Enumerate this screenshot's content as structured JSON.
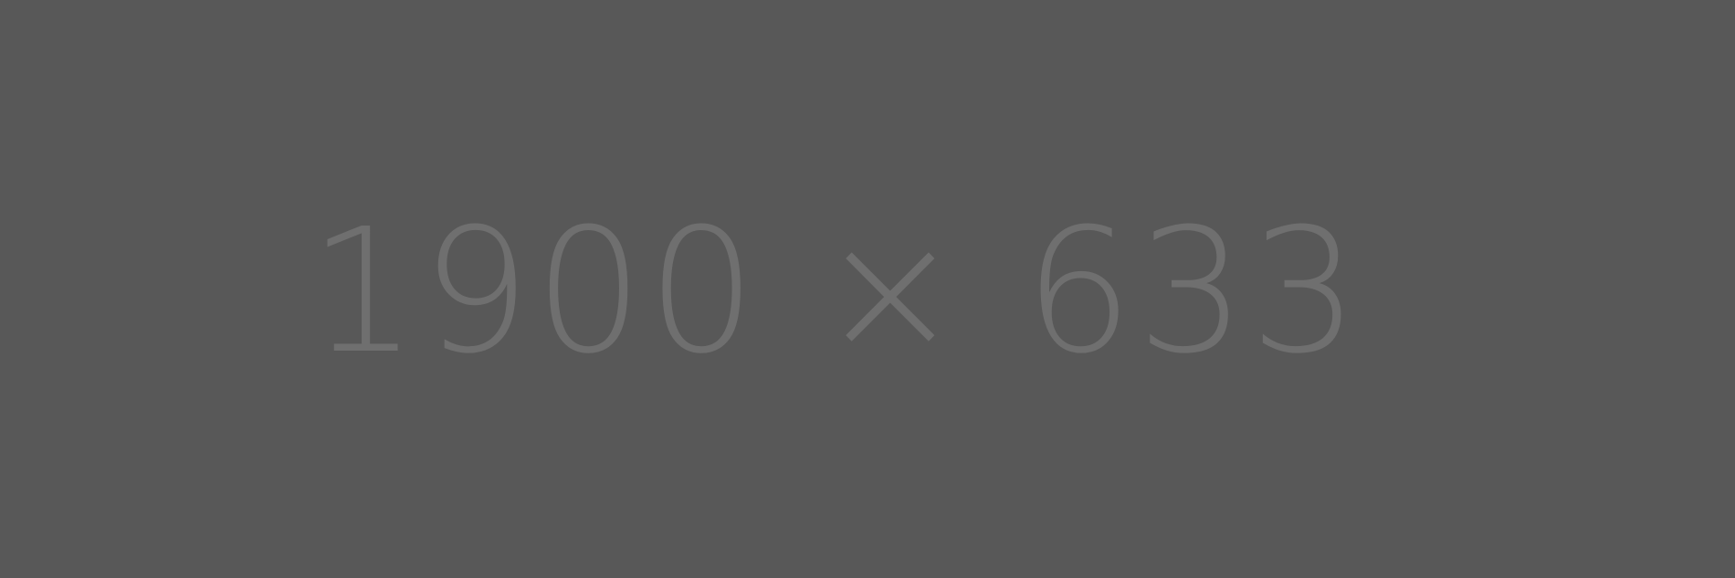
{
  "placeholder": {
    "label": "1900 × 633",
    "background_color": "#585858",
    "text_color": "#6f6f6f"
  }
}
